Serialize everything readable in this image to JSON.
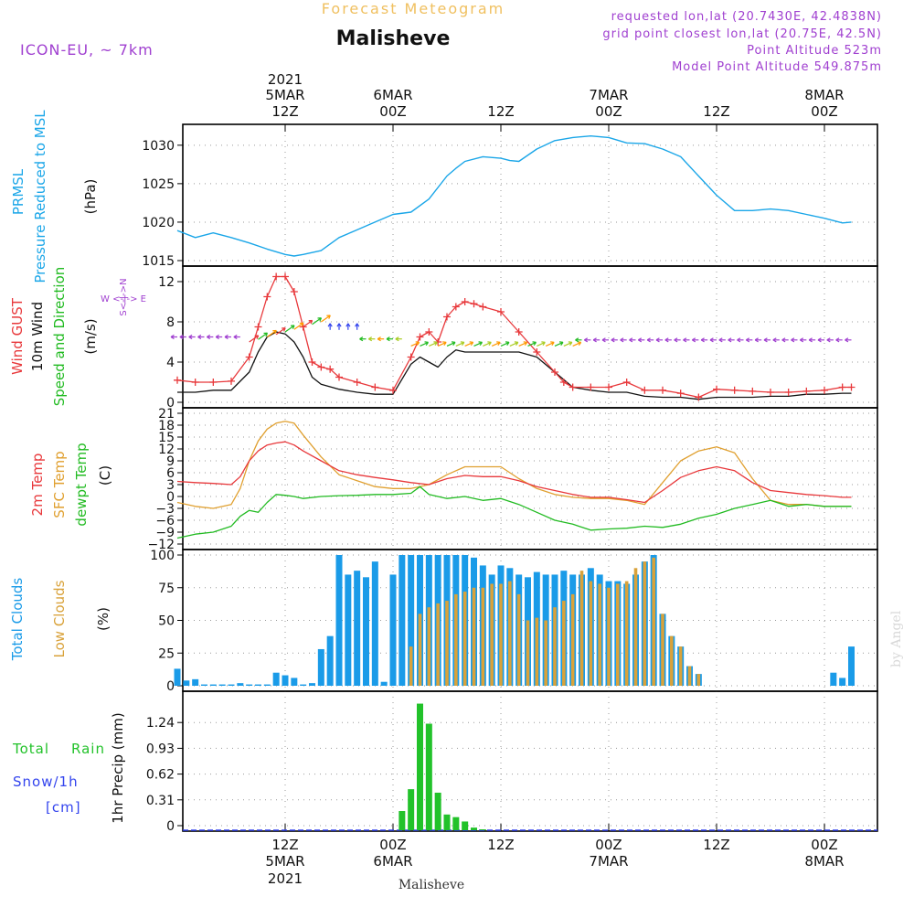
{
  "header": {
    "product_title": "Forecast Meteogram",
    "location": "Malisheve",
    "model": "ICON-EU, ~ 7km",
    "requested": "requested lon,lat (20.7430E, 42.4838N)",
    "grid_point": "grid point closest lon,lat (20.75E, 42.5N)",
    "point_altitude": "Point Altitude 523m",
    "model_altitude": "Model Point Altitude 549.875m",
    "credit": "by Angel",
    "footer_location": "Malisheve"
  },
  "time_axis": {
    "year": "2021",
    "ticks": [
      {
        "h": 12,
        "hour": "12Z",
        "date": "5MAR"
      },
      {
        "h": 24,
        "hour": "00Z",
        "date": "6MAR"
      },
      {
        "h": 36,
        "hour": "12Z",
        "date": ""
      },
      {
        "h": 48,
        "hour": "00Z",
        "date": "7MAR"
      },
      {
        "h": 60,
        "hour": "12Z",
        "date": ""
      },
      {
        "h": 72,
        "hour": "00Z",
        "date": "8MAR"
      }
    ]
  },
  "panel_labels": {
    "pressure": [
      "PRMSL",
      "Pressure Reduced to MSL",
      "(hPa)"
    ],
    "wind": [
      "Wind GUST",
      "10m Wind",
      "Speed and Direction",
      "(m/s)"
    ],
    "compass": [
      "W <-|-> E",
      "S<-|->N"
    ],
    "temp": [
      "2m Temp",
      "SFC Temp",
      "dewpt Temp",
      "(C)"
    ],
    "clouds": [
      "Total Clouds",
      "Low Clouds",
      "(%)"
    ],
    "precip": [
      "Total",
      "Rain",
      "Snow/1h",
      "[cm]",
      "1hr Precip (mm)"
    ]
  },
  "colors": {
    "pressure": "#1aa6e8",
    "gust": "#e8383b",
    "wind": "#111111",
    "t2m": "#e8383b",
    "tsfc": "#e0a030",
    "dewpt": "#22bb22",
    "total_clouds": "#1a9be8",
    "low_clouds": "#d9a23a",
    "rain": "#22c22a",
    "purple": "#a040d0",
    "title_gold": "#f0c060"
  },
  "chart_data": [
    {
      "type": "line",
      "name": "pressure",
      "x_unit": "hours from 2021-03-05 00Z",
      "ylim": [
        1015,
        1032
      ],
      "yticks": [
        1015,
        1020,
        1025,
        1030
      ],
      "series": [
        {
          "name": "PRMSL",
          "x": [
            0,
            2,
            4,
            6,
            8,
            10,
            12,
            13,
            14,
            16,
            18,
            20,
            22,
            24,
            26,
            28,
            30,
            31,
            32,
            34,
            36,
            37,
            38,
            40,
            42,
            44,
            46,
            48,
            50,
            52,
            54,
            56,
            58,
            60,
            62,
            64,
            66,
            68,
            70,
            72,
            74,
            75
          ],
          "values": [
            1018.9,
            1018.0,
            1018.6,
            1018.0,
            1017.3,
            1016.5,
            1015.8,
            1015.6,
            1015.8,
            1016.3,
            1018.0,
            1019.0,
            1020.0,
            1021.0,
            1021.3,
            1023.0,
            1026.0,
            1027.0,
            1027.9,
            1028.5,
            1028.3,
            1028.0,
            1027.9,
            1029.5,
            1030.6,
            1031.0,
            1031.2,
            1031.0,
            1030.3,
            1030.2,
            1029.5,
            1028.5,
            1026.0,
            1023.5,
            1021.5,
            1021.5,
            1021.7,
            1021.5,
            1021.0,
            1020.5,
            1019.9,
            1020.0
          ]
        }
      ]
    },
    {
      "type": "line",
      "name": "wind",
      "ylim": [
        0,
        13
      ],
      "yticks": [
        0,
        4,
        8,
        12
      ],
      "series": [
        {
          "name": "Wind GUST",
          "x": [
            0,
            2,
            4,
            6,
            8,
            9,
            10,
            11,
            12,
            13,
            14,
            15,
            16,
            17,
            18,
            20,
            22,
            24,
            26,
            27,
            28,
            29,
            30,
            31,
            32,
            33,
            34,
            36,
            38,
            40,
            42,
            43,
            44,
            46,
            48,
            50,
            52,
            54,
            56,
            58,
            60,
            62,
            64,
            66,
            68,
            70,
            72,
            74,
            75
          ],
          "values": [
            2.2,
            2.0,
            2.0,
            2.1,
            4.5,
            7.5,
            10.5,
            12.5,
            12.5,
            11.0,
            7.5,
            4.0,
            3.5,
            3.3,
            2.5,
            2.0,
            1.5,
            1.2,
            4.5,
            6.5,
            7.0,
            6.0,
            8.5,
            9.5,
            10.0,
            9.8,
            9.5,
            9.0,
            7.0,
            5.0,
            3.0,
            2.0,
            1.5,
            1.5,
            1.5,
            2.0,
            1.2,
            1.2,
            0.9,
            0.5,
            1.3,
            1.2,
            1.1,
            1.0,
            1.0,
            1.1,
            1.2,
            1.5,
            1.5
          ]
        },
        {
          "name": "10m Wind",
          "x": [
            0,
            2,
            4,
            6,
            8,
            9,
            10,
            11,
            12,
            13,
            14,
            15,
            16,
            18,
            20,
            22,
            24,
            26,
            27,
            28,
            29,
            30,
            31,
            32,
            34,
            36,
            38,
            40,
            42,
            44,
            46,
            48,
            50,
            52,
            54,
            56,
            58,
            60,
            62,
            64,
            66,
            68,
            70,
            72,
            74,
            75
          ],
          "values": [
            1.0,
            1.0,
            1.2,
            1.2,
            3.0,
            5.0,
            6.5,
            7.0,
            6.8,
            6.0,
            4.5,
            2.5,
            1.8,
            1.3,
            1.0,
            0.8,
            0.8,
            3.8,
            4.5,
            4.0,
            3.5,
            4.5,
            5.2,
            5.0,
            5.0,
            5.0,
            5.0,
            4.5,
            3.0,
            1.5,
            1.2,
            1.0,
            1.0,
            0.6,
            0.5,
            0.5,
            0.3,
            0.5,
            0.5,
            0.5,
            0.6,
            0.6,
            0.8,
            0.8,
            0.9,
            0.9
          ]
        }
      ]
    },
    {
      "type": "line",
      "name": "temperature",
      "ylim": [
        -12,
        21
      ],
      "yticks": [
        -12,
        -9,
        -6,
        -3,
        0,
        3,
        6,
        9,
        12,
        15,
        18,
        21
      ],
      "series": [
        {
          "name": "2m Temp",
          "x": [
            0,
            2,
            4,
            6,
            7,
            8,
            9,
            10,
            11,
            12,
            13,
            14,
            16,
            18,
            20,
            22,
            24,
            26,
            28,
            30,
            32,
            34,
            36,
            38,
            40,
            42,
            44,
            46,
            48,
            50,
            52,
            54,
            56,
            58,
            60,
            62,
            64,
            66,
            68,
            70,
            72,
            74,
            75
          ],
          "values": [
            3.8,
            3.5,
            3.3,
            3.0,
            5.0,
            9.0,
            11.5,
            13.0,
            13.5,
            13.8,
            13.0,
            11.5,
            9.0,
            6.5,
            5.5,
            4.8,
            4.2,
            3.5,
            3.0,
            4.5,
            5.3,
            5.0,
            5.0,
            4.0,
            2.5,
            1.5,
            0.5,
            -0.2,
            -0.2,
            -0.8,
            -1.5,
            1.5,
            4.8,
            6.5,
            7.5,
            6.5,
            3.5,
            1.5,
            1.0,
            0.5,
            0.2,
            -0.2,
            -0.2
          ]
        },
        {
          "name": "SFC Temp",
          "x": [
            0,
            2,
            4,
            6,
            7,
            8,
            9,
            10,
            11,
            12,
            13,
            14,
            16,
            18,
            20,
            22,
            24,
            26,
            28,
            30,
            32,
            34,
            36,
            38,
            40,
            42,
            44,
            46,
            48,
            50,
            52,
            54,
            56,
            58,
            60,
            62,
            64,
            66,
            68,
            70,
            72,
            74,
            75
          ],
          "values": [
            -1.5,
            -2.5,
            -3.0,
            -2.0,
            2.0,
            9.0,
            14.0,
            17.0,
            18.5,
            19.0,
            18.5,
            15.5,
            10.0,
            5.5,
            4.0,
            2.5,
            2.0,
            2.0,
            3.0,
            5.5,
            7.5,
            7.5,
            7.5,
            4.5,
            2.0,
            0.5,
            -0.2,
            -0.5,
            -0.5,
            -1.0,
            -2.0,
            3.5,
            9.0,
            11.5,
            12.5,
            11.0,
            4.5,
            -1.0,
            -2.0,
            -2.0,
            -2.5,
            -2.5,
            -2.5
          ]
        },
        {
          "name": "dewpt Temp",
          "x": [
            0,
            2,
            4,
            6,
            7,
            8,
            9,
            10,
            11,
            12,
            13,
            14,
            16,
            18,
            20,
            22,
            24,
            26,
            27,
            28,
            30,
            32,
            34,
            36,
            38,
            40,
            42,
            44,
            46,
            48,
            50,
            52,
            54,
            56,
            58,
            60,
            62,
            64,
            66,
            68,
            70,
            72,
            74,
            75
          ],
          "values": [
            -10.5,
            -9.5,
            -9.0,
            -7.5,
            -5.0,
            -3.5,
            -4.0,
            -1.5,
            0.5,
            0.3,
            0.0,
            -0.5,
            0.0,
            0.2,
            0.3,
            0.5,
            0.5,
            0.8,
            2.5,
            0.5,
            -0.5,
            0.0,
            -1.0,
            -0.5,
            -2.0,
            -4.0,
            -6.0,
            -7.0,
            -8.5,
            -8.2,
            -8.0,
            -7.5,
            -7.8,
            -7.0,
            -5.5,
            -4.5,
            -3.0,
            -2.0,
            -1.0,
            -2.5,
            -2.0,
            -2.5,
            -2.5,
            -2.5
          ]
        }
      ]
    },
    {
      "type": "bar",
      "name": "clouds",
      "ylim": [
        0,
        100
      ],
      "yticks": [
        0,
        25,
        50,
        75,
        100
      ],
      "x": [
        0,
        1,
        2,
        3,
        4,
        5,
        6,
        7,
        8,
        9,
        10,
        11,
        12,
        13,
        14,
        15,
        16,
        17,
        18,
        19,
        20,
        21,
        22,
        23,
        24,
        25,
        26,
        27,
        28,
        29,
        30,
        31,
        32,
        33,
        34,
        35,
        36,
        37,
        38,
        39,
        40,
        41,
        42,
        43,
        44,
        45,
        46,
        47,
        48,
        49,
        50,
        51,
        52,
        53,
        54,
        55,
        56,
        57,
        58,
        59,
        60,
        61,
        62,
        63,
        64,
        65,
        66,
        67,
        68,
        69,
        70,
        71,
        72,
        73,
        74,
        75
      ],
      "series": [
        {
          "name": "Total Clouds",
          "values": [
            13,
            4,
            5,
            1,
            1,
            1,
            1,
            2,
            1,
            1,
            1,
            10,
            8,
            6,
            1,
            2,
            28,
            38,
            100,
            85,
            88,
            83,
            95,
            3,
            85,
            100,
            100,
            100,
            100,
            100,
            100,
            100,
            100,
            98,
            92,
            85,
            92,
            90,
            85,
            83,
            87,
            85,
            85,
            88,
            85,
            85,
            90,
            85,
            80,
            80,
            78,
            85,
            95,
            100,
            55,
            38,
            30,
            15,
            9,
            0,
            0,
            0,
            0,
            0,
            0,
            0,
            0,
            0,
            0,
            0,
            0,
            0,
            0,
            10,
            6,
            30
          ]
        },
        {
          "name": "Low Clouds",
          "values": [
            0,
            0,
            0,
            0,
            0,
            0,
            0,
            0,
            0,
            0,
            0,
            0,
            0,
            0,
            0,
            0,
            0,
            0,
            0,
            0,
            0,
            0,
            0,
            0,
            0,
            0,
            30,
            55,
            60,
            63,
            65,
            70,
            72,
            75,
            75,
            78,
            78,
            80,
            70,
            50,
            52,
            50,
            60,
            65,
            70,
            88,
            80,
            78,
            75,
            78,
            80,
            90,
            95,
            98,
            55,
            38,
            30,
            15,
            9,
            0,
            0,
            0,
            0,
            0,
            0,
            0,
            0,
            0,
            0,
            0,
            0,
            0,
            0,
            0,
            0,
            0
          ]
        }
      ]
    },
    {
      "type": "bar",
      "name": "precipitation",
      "ylim": [
        0,
        1.55
      ],
      "yticks": [
        0,
        0.31,
        0.62,
        0.93,
        1.24
      ],
      "x": [
        25,
        26,
        27,
        28,
        29,
        30,
        31,
        32,
        33,
        34
      ],
      "series": [
        {
          "name": "Rain",
          "values": [
            0.22,
            0.47,
            1.45,
            1.22,
            0.43,
            0.18,
            0.15,
            0.1,
            0.03,
            0.01
          ]
        }
      ]
    }
  ]
}
